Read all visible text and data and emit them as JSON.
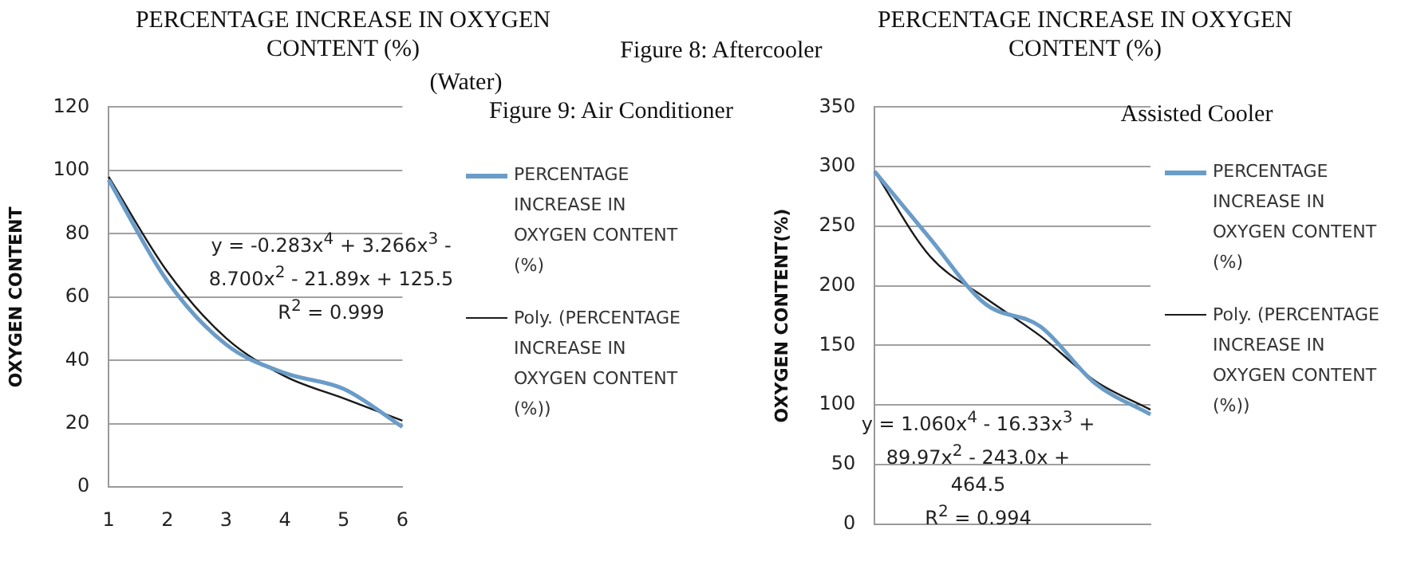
{
  "chart_data": [
    {
      "type": "line",
      "title": "PERCENTAGE INCREASE IN OXYGEN CONTENT (%)",
      "ylabel": "OXYGEN CONTENT",
      "categories": [
        "1",
        "2",
        "3",
        "4",
        "5",
        "6"
      ],
      "series": [
        {
          "name": "PERCENTAGE INCREASE IN OXYGEN CONTENT (%)",
          "color": "#6a9cc8",
          "values": [
            97,
            65,
            45,
            36,
            31,
            19
          ]
        },
        {
          "name": "Poly. (PERCENTAGE INCREASE IN OXYGEN CONTENT (%))",
          "color": "#1a1a1a",
          "values": [
            98,
            68,
            47,
            35,
            28,
            21
          ]
        }
      ],
      "ylim": [
        0,
        120
      ],
      "yticks": [
        0,
        20,
        40,
        60,
        80,
        100,
        120
      ],
      "grid": "y",
      "legend": "right",
      "marker": "none",
      "line_style": "solid",
      "annotations": [
        "y = -0.283x$^{4}$ + 3.266x$^{3}$ - 8.700x$^{2}$ - 21.89x + 125.5\nR$^{2}$ = 0.999",
        "Figure 8: Aftercooler",
        "(Water)",
        "Figure 9:  Air Conditioner"
      ]
    },
    {
      "type": "line",
      "title": "PERCENTAGE INCREASE IN OXYGEN CONTENT (%)",
      "ylabel": "OXYGEN CONTENT(%)",
      "categories": [
        null,
        null,
        null,
        null,
        null,
        null
      ],
      "series": [
        {
          "name": "PERCENTAGE INCREASE IN OXYGEN CONTENT (%)",
          "color": "#6a9cc8",
          "values": [
            296,
            240,
            185,
            166,
            118,
            92
          ]
        },
        {
          "name": "Poly. (PERCENTAGE INCREASE IN OXYGEN CONTENT (%))",
          "color": "#1a1a1a",
          "values": [
            296,
            225,
            190,
            158,
            120,
            96
          ]
        }
      ],
      "ylim": [
        0,
        350
      ],
      "yticks": [
        0,
        50,
        100,
        150,
        200,
        250,
        300,
        350
      ],
      "grid": "y",
      "legend": "right",
      "marker": "none",
      "line_style": "solid",
      "tick_labels": "y",
      "annotations": [
        "Assisted Cooler",
        "y = 1.060x$^{4}$ - 16.33x$^{3}$ + 89.97x$^{2}$ - 243.0x + 464.5\nR$^{2}$ = 0.994"
      ]
    }
  ]
}
